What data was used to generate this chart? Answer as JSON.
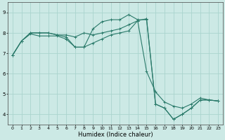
{
  "title": "",
  "xlabel": "Humidex (Indice chaleur)",
  "xlim": [
    -0.5,
    23.5
  ],
  "ylim": [
    3.5,
    9.5
  ],
  "xticks": [
    0,
    1,
    2,
    3,
    4,
    5,
    6,
    7,
    8,
    9,
    10,
    11,
    12,
    13,
    14,
    15,
    16,
    17,
    18,
    19,
    20,
    21,
    22,
    23
  ],
  "yticks": [
    4,
    5,
    6,
    7,
    8,
    9
  ],
  "bg_color": "#cce9e5",
  "grid_color": "#aad4ce",
  "line_color": "#2a7a6a",
  "line1_x": [
    0,
    1,
    2,
    3,
    4,
    5,
    6,
    7,
    8,
    9,
    10,
    11,
    12,
    13,
    14,
    15,
    16,
    17,
    18,
    19,
    20,
    21,
    22,
    23
  ],
  "line1_y": [
    6.9,
    7.6,
    7.95,
    7.85,
    7.85,
    7.85,
    7.7,
    7.3,
    7.3,
    8.2,
    8.55,
    8.65,
    8.65,
    8.9,
    8.65,
    8.65,
    4.5,
    4.3,
    3.75,
    4.0,
    4.3,
    4.7,
    4.7,
    4.65
  ],
  "line2_x": [
    0,
    1,
    2,
    3,
    4,
    5,
    6,
    7,
    8,
    9,
    10,
    11,
    12,
    13,
    14,
    15,
    16,
    17,
    18,
    19,
    20,
    21,
    22,
    23
  ],
  "line2_y": [
    6.9,
    7.6,
    8.0,
    8.0,
    8.0,
    7.9,
    7.8,
    7.3,
    7.3,
    7.5,
    7.7,
    7.9,
    8.0,
    8.1,
    8.6,
    6.1,
    5.1,
    4.6,
    4.4,
    4.3,
    4.5,
    4.8,
    4.7,
    4.65
  ],
  "line3_x": [
    0,
    1,
    2,
    3,
    4,
    5,
    6,
    7,
    8,
    9,
    10,
    11,
    12,
    13,
    14,
    15
  ],
  "line3_y": [
    6.9,
    7.6,
    8.0,
    8.0,
    8.0,
    7.9,
    7.9,
    7.8,
    8.0,
    7.9,
    8.0,
    8.1,
    8.2,
    8.4,
    8.6,
    8.7
  ],
  "line4_x": [
    15,
    16,
    17,
    18,
    19,
    20,
    21,
    22,
    23
  ],
  "line4_y": [
    8.7,
    4.5,
    4.3,
    3.75,
    4.0,
    4.3,
    4.7,
    4.7,
    4.65
  ],
  "xlabel_fontsize": 6,
  "tick_fontsize": 4.5
}
